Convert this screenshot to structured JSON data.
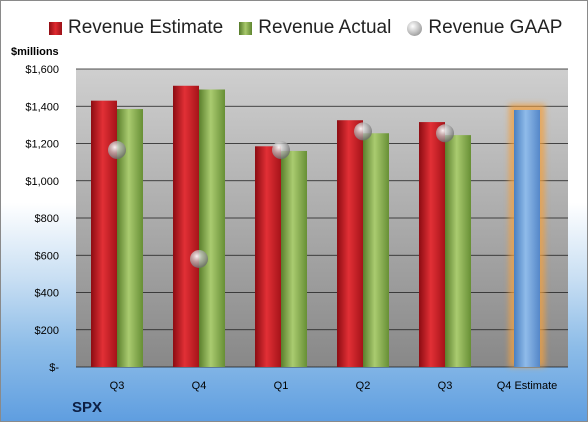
{
  "legend": {
    "estimate": "Revenue Estimate",
    "actual": "Revenue Actual",
    "gaap": "Revenue GAAP"
  },
  "units_label": "$millions",
  "ticker": "SPX",
  "colors": {
    "estimate": "#d7252b",
    "actual": "#8fb155",
    "forecast": "#6d9fd8",
    "forecast_glow": "#f2a040",
    "gaap": "#9a9a9a"
  },
  "chart_data": {
    "type": "bar",
    "categories": [
      "Q3",
      "Q4",
      "Q1",
      "Q2",
      "Q3",
      "Q4 Estimate"
    ],
    "series": [
      {
        "name": "Revenue Estimate",
        "values": [
          1430,
          1510,
          1185,
          1325,
          1315,
          null
        ]
      },
      {
        "name": "Revenue Actual",
        "values": [
          1385,
          1490,
          1160,
          1255,
          1245,
          1380
        ]
      },
      {
        "name": "Revenue GAAP",
        "values": [
          1165,
          580,
          1165,
          1265,
          1255,
          null
        ]
      }
    ],
    "y_ticks": [
      "$-",
      "$200",
      "$400",
      "$600",
      "$800",
      "$1,000",
      "$1,200",
      "$1,400",
      "$1,600"
    ],
    "ylim": [
      0,
      1600
    ],
    "grid": true,
    "legend_position": "top"
  }
}
